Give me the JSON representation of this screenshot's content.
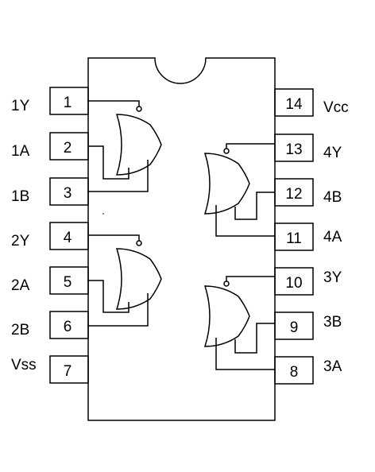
{
  "chip": {
    "left_pins": [
      {
        "num": "1",
        "label": "1Y"
      },
      {
        "num": "2",
        "label": "1A"
      },
      {
        "num": "3",
        "label": "1B"
      },
      {
        "num": "4",
        "label": "2Y"
      },
      {
        "num": "5",
        "label": "2A"
      },
      {
        "num": "6",
        "label": "2B"
      },
      {
        "num": "7",
        "label": "Vss"
      }
    ],
    "right_pins": [
      {
        "num": "14",
        "label": "Vcc"
      },
      {
        "num": "13",
        "label": "4Y"
      },
      {
        "num": "12",
        "label": "4B"
      },
      {
        "num": "11",
        "label": "4A"
      },
      {
        "num": "10",
        "label": "3Y"
      },
      {
        "num": "9",
        "label": "3B"
      },
      {
        "num": "8",
        "label": "3A"
      }
    ],
    "gates": [
      {
        "type": "nor",
        "inputs": [
          "2",
          "3"
        ],
        "output": "1"
      },
      {
        "type": "nor",
        "inputs": [
          "5",
          "6"
        ],
        "output": "4"
      },
      {
        "type": "nor",
        "inputs": [
          "12",
          "11"
        ],
        "output": "13"
      },
      {
        "type": "nor",
        "inputs": [
          "9",
          "8"
        ],
        "output": "10"
      }
    ]
  }
}
